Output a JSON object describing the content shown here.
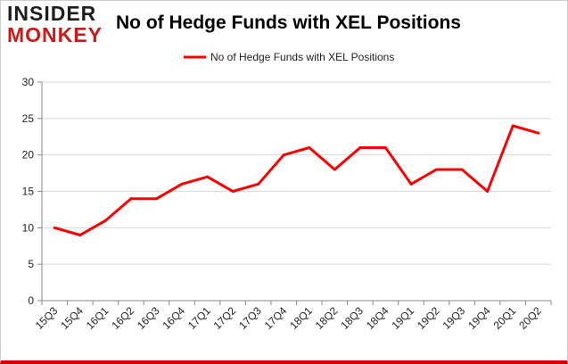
{
  "logo": {
    "line1": "INSIDER",
    "line2": "MONKEY"
  },
  "colors": {
    "series": "#ff0000",
    "axis": "#888888",
    "grid": "#d9d9d9",
    "logo_red": "#cc1a1a"
  },
  "chart_data": {
    "type": "line",
    "title": "No of Hedge Funds with XEL Positions",
    "xlabel": "",
    "ylabel": "",
    "categories": [
      "15Q3",
      "15Q4",
      "16Q1",
      "16Q2",
      "16Q3",
      "16Q4",
      "17Q1",
      "17Q2",
      "17Q3",
      "17Q4",
      "18Q1",
      "18Q2",
      "18Q3",
      "18Q4",
      "19Q1",
      "19Q2",
      "19Q3",
      "19Q4",
      "20Q1",
      "20Q2"
    ],
    "series": [
      {
        "name": "No of Hedge Funds with XEL Positions",
        "values": [
          10,
          9,
          11,
          14,
          14,
          16,
          17,
          15,
          16,
          20,
          21,
          18,
          21,
          21,
          16,
          18,
          18,
          15,
          24,
          23
        ]
      }
    ],
    "ylim": [
      0,
      30
    ],
    "yticks": [
      0,
      5,
      10,
      15,
      20,
      25,
      30
    ],
    "grid": true,
    "legend": "top-center"
  }
}
